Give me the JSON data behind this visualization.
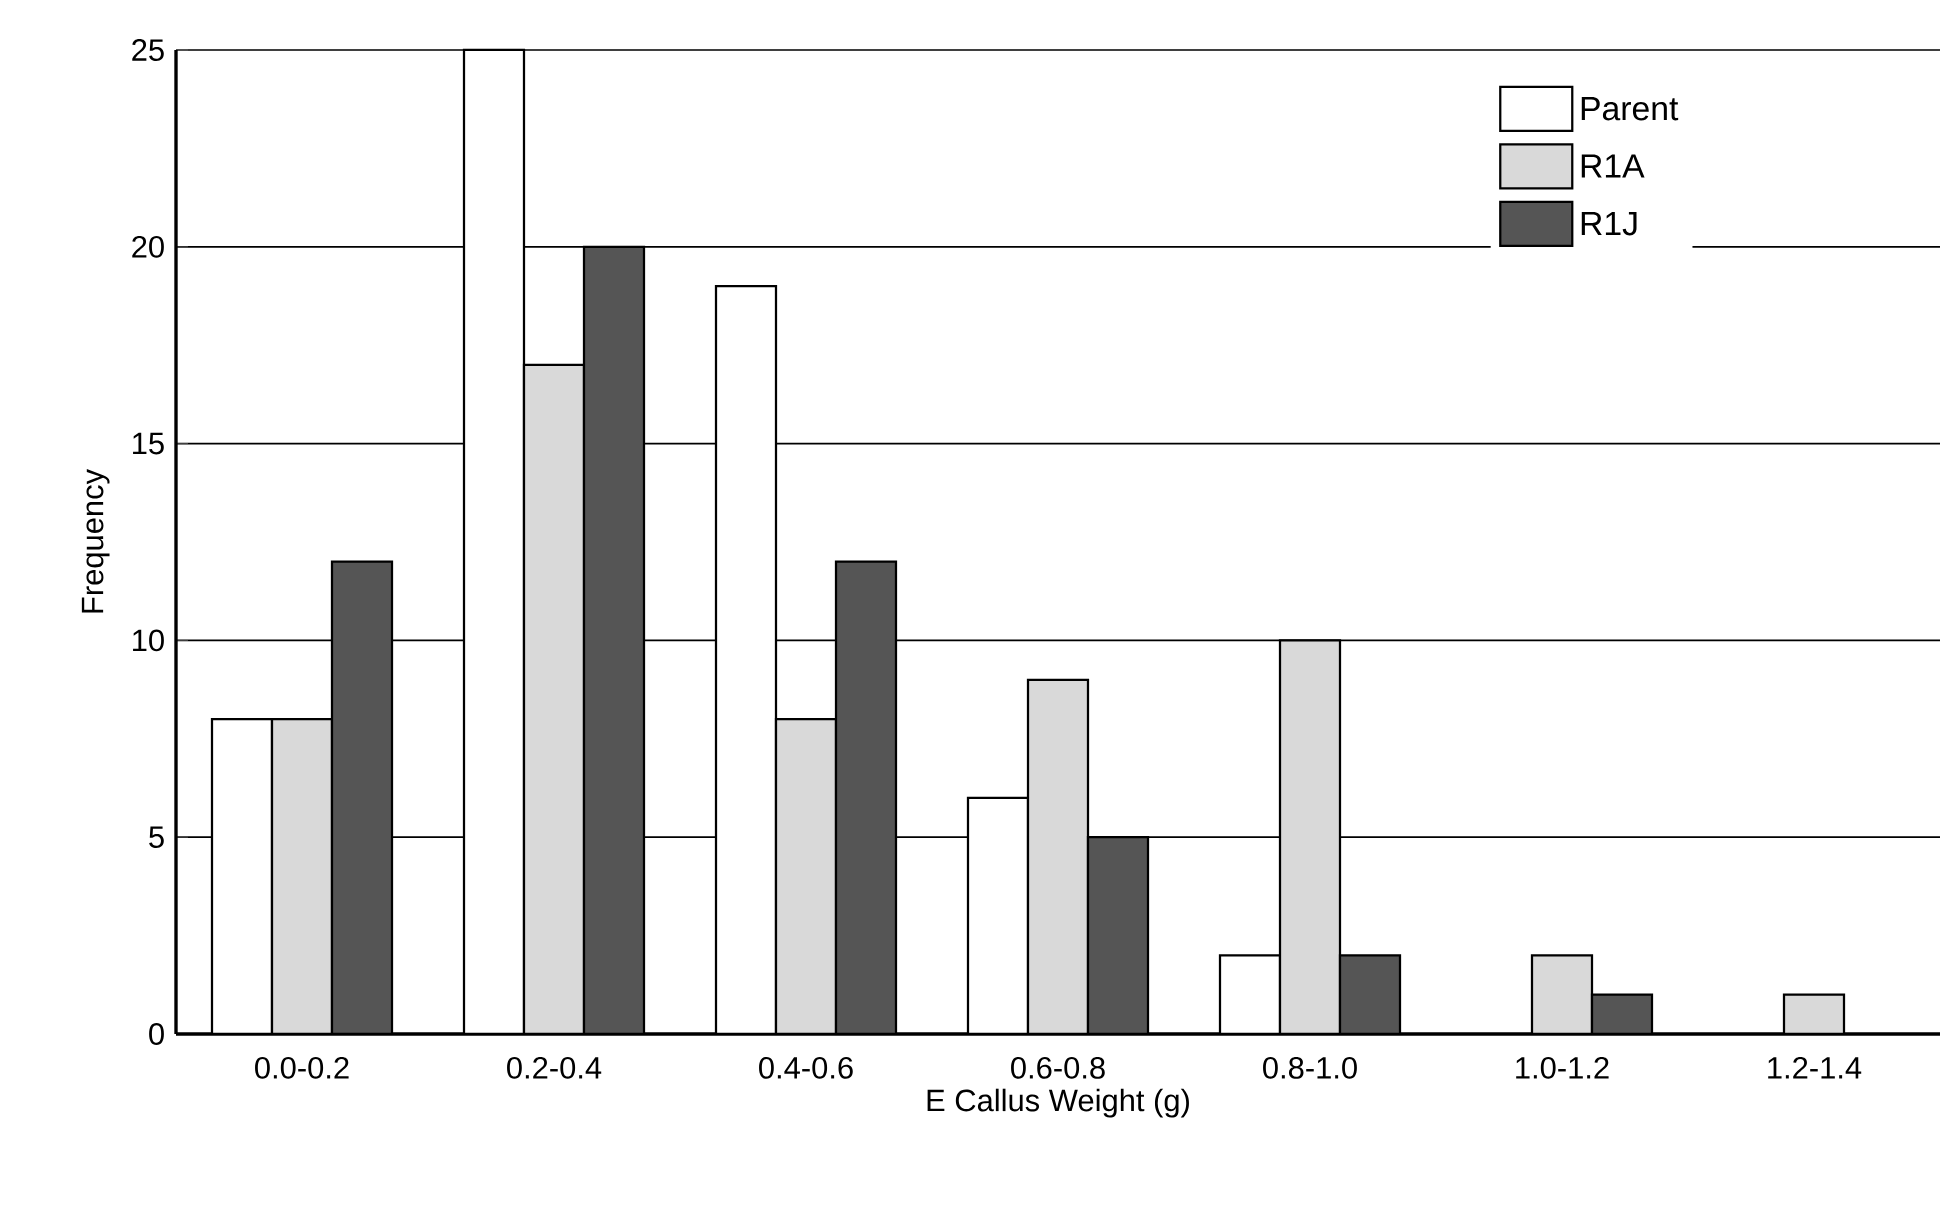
{
  "chart_data": {
    "type": "bar",
    "xlabel": "E Callus Weight (g)",
    "ylabel": "Frequency",
    "categories": [
      "0.0-0.2",
      "0.2-0.4",
      "0.4-0.6",
      "0.6-0.8",
      "0.8-1.0",
      "1.0-1.2",
      "1.2-1.4"
    ],
    "series": [
      {
        "name": "Parent",
        "color": "#ffffff",
        "values": [
          8,
          25,
          19,
          6,
          2,
          null,
          null
        ]
      },
      {
        "name": "R1A",
        "color": "#d9d9d9",
        "values": [
          8,
          17,
          8,
          9,
          10,
          2,
          1
        ]
      },
      {
        "name": "R1J",
        "color": "#555555",
        "values": [
          12,
          20,
          12,
          5,
          2,
          1,
          null
        ]
      }
    ],
    "ylim": [
      0,
      25
    ],
    "yticks": [
      0,
      5,
      10,
      15,
      20,
      25
    ],
    "grid": "y",
    "legend": "top right"
  }
}
